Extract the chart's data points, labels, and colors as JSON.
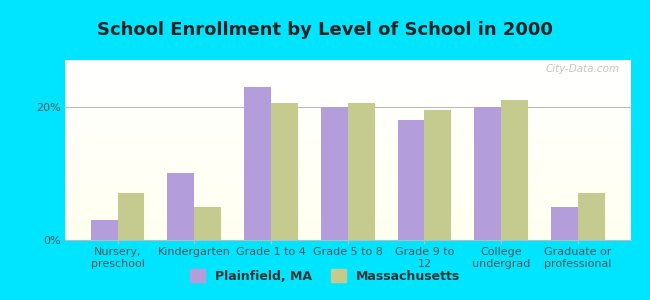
{
  "title": "School Enrollment by Level of School in 2000",
  "categories": [
    "Nursery,\npreschool",
    "Kindergarten",
    "Grade 1 to 4",
    "Grade 5 to 8",
    "Grade 9 to\n12",
    "College\nundergrad",
    "Graduate or\nprofessional"
  ],
  "plainfield_values": [
    3.0,
    10.0,
    23.0,
    20.0,
    18.0,
    20.0,
    5.0
  ],
  "massachusetts_values": [
    7.0,
    5.0,
    20.5,
    20.5,
    19.5,
    21.0,
    7.0
  ],
  "plainfield_color": "#b39ddb",
  "massachusetts_color": "#c5cb8e",
  "background_color": "#00e5ff",
  "legend_plainfield": "Plainfield, MA",
  "legend_massachusetts": "Massachusetts",
  "yticks": [
    0,
    20
  ],
  "ytick_labels": [
    "0%",
    "20%"
  ],
  "ylim": [
    0,
    27
  ],
  "watermark": "City-Data.com",
  "title_fontsize": 13,
  "tick_fontsize": 8,
  "legend_fontsize": 9,
  "bar_width": 0.35
}
